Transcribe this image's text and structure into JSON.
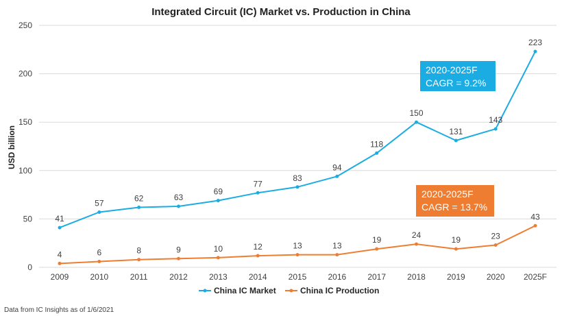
{
  "footnote": "Data from IC Insights as of 1/6/2021",
  "callouts": [
    {
      "lines": [
        "2020-2025F",
        "CAGR = 9.2%"
      ],
      "color": "#1aace3"
    },
    {
      "lines": [
        "2020-2025F",
        "CAGR = 13.7%"
      ],
      "color": "#ef7d31"
    }
  ],
  "chart_data": {
    "type": "line",
    "title": "Integrated Circuit (IC) Market vs. Production in China",
    "xlabel": "",
    "ylabel": "USD billion",
    "ylim": [
      0,
      250
    ],
    "yticks": [
      0,
      50,
      100,
      150,
      200,
      250
    ],
    "grid": true,
    "legend_position": "bottom",
    "categories": [
      "2009",
      "2010",
      "2011",
      "2012",
      "2013",
      "2014",
      "2015",
      "2016",
      "2017",
      "2018",
      "2019",
      "2020",
      "2025F"
    ],
    "series": [
      {
        "name": "China IC Market",
        "color": "#1aace3",
        "values": [
          41,
          57,
          62,
          63,
          69,
          77,
          83,
          94,
          118,
          150,
          131,
          143,
          223
        ]
      },
      {
        "name": "China IC Production",
        "color": "#ef7d31",
        "values": [
          4,
          6,
          8,
          9,
          10,
          12,
          13,
          13,
          19,
          24,
          19,
          23,
          43
        ]
      }
    ]
  }
}
